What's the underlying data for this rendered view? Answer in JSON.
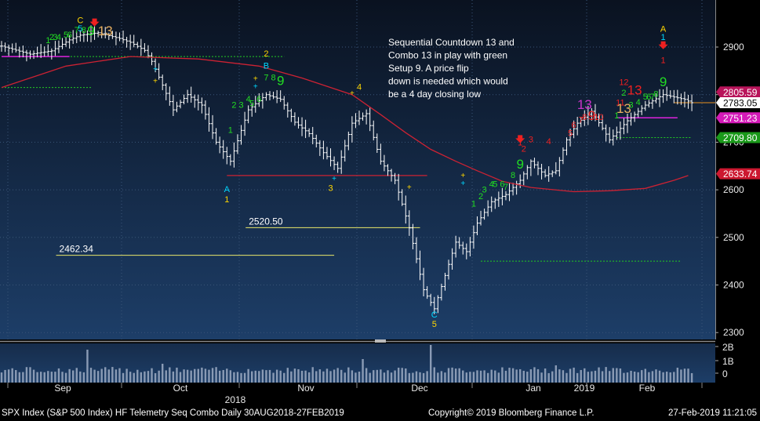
{
  "chart_data": {
    "type": "candlestick",
    "instrument": "SPX Index (S&P 500 Index) HF Telemetry Seq Combo",
    "period": "Daily 30AUG2018-27FEB2019",
    "ylim": [
      2280,
      2960
    ],
    "y_ticks": [
      2300,
      2400,
      2500,
      2600,
      2700,
      2800,
      2900
    ],
    "x_months": [
      "Sep",
      "Oct",
      "Nov",
      "Dec",
      "Jan",
      "2019",
      "Feb"
    ],
    "year_label": "2018",
    "volume_ticks": [
      "2B",
      "1B",
      "0"
    ],
    "series": [
      {
        "name": "price_path",
        "values": [
          [
            0,
            2902
          ],
          [
            8,
            2885
          ],
          [
            14,
            2892
          ],
          [
            19,
            2915
          ],
          [
            22,
            2925
          ],
          [
            27,
            2930
          ],
          [
            33,
            2918
          ],
          [
            36,
            2910
          ],
          [
            40,
            2893
          ],
          [
            42,
            2870
          ],
          [
            45,
            2820
          ],
          [
            48,
            2768
          ],
          [
            52,
            2800
          ],
          [
            56,
            2778
          ],
          [
            60,
            2700
          ],
          [
            64,
            2660
          ],
          [
            69,
            2768
          ],
          [
            74,
            2800
          ],
          [
            78,
            2790
          ],
          [
            82,
            2742
          ],
          [
            86,
            2718
          ],
          [
            90,
            2678
          ],
          [
            94,
            2645
          ],
          [
            98,
            2740
          ],
          [
            102,
            2760
          ],
          [
            106,
            2660
          ],
          [
            110,
            2620
          ],
          [
            114,
            2520
          ],
          [
            118,
            2390
          ],
          [
            121,
            2350
          ],
          [
            124,
            2420
          ],
          [
            127,
            2490
          ],
          [
            130,
            2470
          ],
          [
            133,
            2530
          ],
          [
            137,
            2575
          ],
          [
            141,
            2590
          ],
          [
            145,
            2620
          ],
          [
            148,
            2660
          ],
          [
            152,
            2630
          ],
          [
            155,
            2640
          ],
          [
            158,
            2705
          ],
          [
            161,
            2740
          ],
          [
            165,
            2765
          ],
          [
            170,
            2705
          ],
          [
            175,
            2745
          ],
          [
            180,
            2778
          ],
          [
            185,
            2800
          ],
          [
            188,
            2795
          ],
          [
            191,
            2790
          ],
          [
            193,
            2783
          ]
        ]
      },
      {
        "name": "moving_average",
        "values": [
          [
            0,
            2815
          ],
          [
            18,
            2860
          ],
          [
            36,
            2880
          ],
          [
            55,
            2875
          ],
          [
            72,
            2860
          ],
          [
            84,
            2835
          ],
          [
            98,
            2800
          ],
          [
            106,
            2758
          ],
          [
            113,
            2720
          ],
          [
            120,
            2685
          ],
          [
            127,
            2660
          ],
          [
            133,
            2640
          ],
          [
            140,
            2618
          ],
          [
            148,
            2605
          ],
          [
            160,
            2596
          ],
          [
            170,
            2598
          ],
          [
            180,
            2603
          ],
          [
            188,
            2620
          ],
          [
            192,
            2630
          ]
        ]
      }
    ],
    "price_tags": [
      {
        "value": "2805.59",
        "price": 2805.59,
        "bg": "#b8145a",
        "fg": "#ffffff"
      },
      {
        "value": "2783.05",
        "price": 2783.05,
        "bg": "#ffffff",
        "fg": "#000000"
      },
      {
        "value": "2751.23",
        "price": 2751.23,
        "bg": "#d41ab8",
        "fg": "#ffffff"
      },
      {
        "value": "2709.80",
        "price": 2709.8,
        "bg": "#1a9a1a",
        "fg": "#ffffff"
      },
      {
        "value": "2633.74",
        "price": 2633.74,
        "bg": "#cc1830",
        "fg": "#ffffff"
      }
    ],
    "level_labels": [
      {
        "text": "2520.50",
        "price": 2520.5,
        "x_start": 70,
        "x_end": 117
      },
      {
        "text": "2462.34",
        "price": 2462.34,
        "x_start": 17,
        "x_end": 93
      }
    ],
    "annotation": "Sequential Countdown 13 and Combo 13 in play with green Setup 9.  A price flip down is needed which would be a 4 day closing low",
    "setup_labels": [
      {
        "text": "C",
        "color": "#ffd700",
        "day": 22,
        "price": 2950
      },
      {
        "text": "5",
        "color": "#00d8ff",
        "day": 22,
        "price": 2933
      },
      {
        "text": "1",
        "color": "#22dd22",
        "day": 13,
        "price": 2908
      },
      {
        "text": "2",
        "color": "#22dd22",
        "day": 14,
        "price": 2915
      },
      {
        "text": "3",
        "color": "#22dd22",
        "day": 15,
        "price": 2915
      },
      {
        "text": "4",
        "color": "#22dd22",
        "day": 16,
        "price": 2915
      },
      {
        "text": "5",
        "color": "#22dd22",
        "day": 18,
        "price": 2920
      },
      {
        "text": "6",
        "color": "#22dd22",
        "day": 19,
        "price": 2920
      },
      {
        "text": "7",
        "color": "#22dd22",
        "day": 21,
        "price": 2930
      },
      {
        "text": "8",
        "color": "#22dd22",
        "day": 23,
        "price": 2930
      },
      {
        "text": "9",
        "color": "#22dd22",
        "day": 25,
        "price": 2925
      },
      {
        "text": "13",
        "color": "#e8b060",
        "day": 29,
        "price": 2925
      },
      {
        "text": "2",
        "color": "#ffd700",
        "day": 74,
        "price": 2880
      },
      {
        "text": "B",
        "color": "#00d8ff",
        "day": 74,
        "price": 2855
      },
      {
        "text": "7",
        "color": "#22dd22",
        "day": 74,
        "price": 2830
      },
      {
        "text": "8",
        "color": "#22dd22",
        "day": 76,
        "price": 2830
      },
      {
        "text": "9",
        "color": "#22dd22",
        "day": 78,
        "price": 2820
      },
      {
        "text": "6",
        "color": "#22dd22",
        "day": 72,
        "price": 2785
      },
      {
        "text": "5",
        "color": "#22dd22",
        "day": 70,
        "price": 2776
      },
      {
        "text": "4",
        "color": "#22dd22",
        "day": 69,
        "price": 2785
      },
      {
        "text": "3",
        "color": "#22dd22",
        "day": 67,
        "price": 2772
      },
      {
        "text": "2",
        "color": "#22dd22",
        "day": 65,
        "price": 2772
      },
      {
        "text": "1",
        "color": "#22dd22",
        "day": 64,
        "price": 2720
      },
      {
        "text": "A",
        "color": "#00d8ff",
        "day": 63,
        "price": 2595
      },
      {
        "text": "1",
        "color": "#ffd700",
        "day": 63,
        "price": 2574
      },
      {
        "text": "4",
        "color": "#ffd700",
        "day": 100,
        "price": 2810
      },
      {
        "text": "3",
        "color": "#ffd700",
        "day": 92,
        "price": 2598
      },
      {
        "text": "C",
        "color": "#00d8ff",
        "day": 121,
        "price": 2332
      },
      {
        "text": "5",
        "color": "#ffd700",
        "day": 121,
        "price": 2312
      },
      {
        "text": "1",
        "color": "#22dd22",
        "day": 132,
        "price": 2565
      },
      {
        "text": "2",
        "color": "#22dd22",
        "day": 134,
        "price": 2580
      },
      {
        "text": "3",
        "color": "#22dd22",
        "day": 135,
        "price": 2594
      },
      {
        "text": "4",
        "color": "#22dd22",
        "day": 137,
        "price": 2606
      },
      {
        "text": "5",
        "color": "#22dd22",
        "day": 138,
        "price": 2606
      },
      {
        "text": "6",
        "color": "#22dd22",
        "day": 140,
        "price": 2606
      },
      {
        "text": "7",
        "color": "#22dd22",
        "day": 141,
        "price": 2600
      },
      {
        "text": "8",
        "color": "#22dd22",
        "day": 143,
        "price": 2625
      },
      {
        "text": "9",
        "color": "#22dd22",
        "day": 145,
        "price": 2645
      },
      {
        "text": "1",
        "color": "#ee2020",
        "day": 145,
        "price": 2693
      },
      {
        "text": "2",
        "color": "#ee2020",
        "day": 146,
        "price": 2680
      },
      {
        "text": "3",
        "color": "#ee2020",
        "day": 148,
        "price": 2700
      },
      {
        "text": "4",
        "color": "#ee2020",
        "day": 153,
        "price": 2696
      },
      {
        "text": "5",
        "color": "#ee2020",
        "day": 159,
        "price": 2713
      },
      {
        "text": "6",
        "color": "#ee2020",
        "day": 160,
        "price": 2730
      },
      {
        "text": "7",
        "color": "#ee2020",
        "day": 162,
        "price": 2741
      },
      {
        "text": "8",
        "color": "#ee2020",
        "day": 163,
        "price": 2747
      },
      {
        "text": "9",
        "color": "#ee2020",
        "day": 165,
        "price": 2747
      },
      {
        "text": "10",
        "color": "#ee2020",
        "day": 167,
        "price": 2747
      },
      {
        "text": "13",
        "color": "#cc33cc",
        "day": 163,
        "price": 2770
      },
      {
        "text": "11",
        "color": "#ee2020",
        "day": 173,
        "price": 2777
      },
      {
        "text": "12",
        "color": "#ee2020",
        "day": 174,
        "price": 2820
      },
      {
        "text": "13",
        "color": "#ee2020",
        "day": 177,
        "price": 2800
      },
      {
        "text": "13",
        "color": "#e8b060",
        "day": 174,
        "price": 2762
      },
      {
        "text": "1",
        "color": "#22dd22",
        "day": 172,
        "price": 2750
      },
      {
        "text": "2",
        "color": "#22dd22",
        "day": 174,
        "price": 2798
      },
      {
        "text": "3",
        "color": "#22dd22",
        "day": 176,
        "price": 2772
      },
      {
        "text": "4",
        "color": "#22dd22",
        "day": 178,
        "price": 2778
      },
      {
        "text": "5",
        "color": "#22dd22",
        "day": 180,
        "price": 2790
      },
      {
        "text": "6",
        "color": "#22dd22",
        "day": 181,
        "price": 2790
      },
      {
        "text": "7",
        "color": "#22dd22",
        "day": 182,
        "price": 2790
      },
      {
        "text": "8",
        "color": "#22dd22",
        "day": 183,
        "price": 2795
      },
      {
        "text": "9",
        "color": "#22dd22",
        "day": 185,
        "price": 2818
      },
      {
        "text": "A",
        "color": "#ffd700",
        "day": 185,
        "price": 2932
      },
      {
        "text": "1",
        "color": "#00d8ff",
        "day": 185,
        "price": 2915
      },
      {
        "text": "1",
        "color": "#ee2020",
        "day": 185,
        "price": 2866
      }
    ],
    "colors": {
      "background_top": "#0a1220",
      "background_bottom": "#1b3a62",
      "bars": "#ffffff",
      "moving_average": "#cc2233",
      "level_line": "#e8e86a",
      "dotted_green": "#22cc22",
      "magenta": "#dd22dd"
    }
  },
  "footer": {
    "left": "SPX Index (S&P 500 Index) HF Telemetry Seq Combo  Daily 30AUG2018-27FEB2019",
    "center": "Copyright© 2019 Bloomberg Finance L.P.",
    "right": "27-Feb-2019 11:21:05"
  }
}
